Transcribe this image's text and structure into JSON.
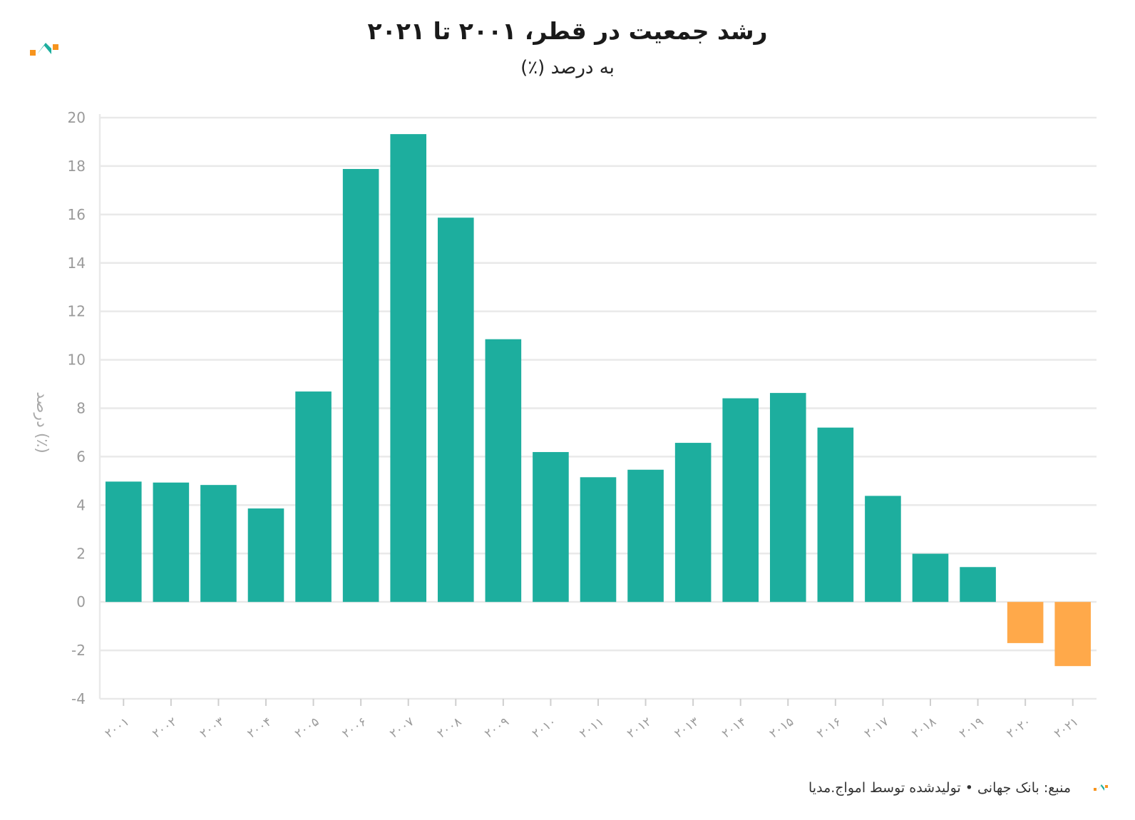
{
  "header": {
    "title": "رشد جمعیت در قطر، ۲۰۰۱ تا ۲۰۲۱",
    "subtitle": "به درصد (٪)"
  },
  "footer": {
    "source": "منبع: بانک جهانی • تولیدشده توسط امواج.مدیا"
  },
  "colors": {
    "positive": "#1dae9e",
    "negative": "#ffa94a",
    "grid": "#e9e9e9",
    "logo_orange": "#f7941d",
    "logo_teal": "#1dae9e"
  },
  "icons": {
    "logo": "amwaj-logo-icon"
  },
  "chart_data": {
    "type": "bar",
    "categories": [
      "۲۰۰۱",
      "۲۰۰۲",
      "۲۰۰۳",
      "۲۰۰۴",
      "۲۰۰۵",
      "۲۰۰۶",
      "۲۰۰۷",
      "۲۰۰۸",
      "۲۰۰۹",
      "۲۰۱۰",
      "۲۰۱۱",
      "۲۰۱۲",
      "۲۰۱۳",
      "۲۰۱۴",
      "۲۰۱۵",
      "۲۰۱۶",
      "۲۰۱۷",
      "۲۰۱۸",
      "۲۰۱۹",
      "۲۰۲۰",
      "۲۰۲۱"
    ],
    "values": [
      4.97,
      4.93,
      4.83,
      3.86,
      8.69,
      17.88,
      19.32,
      15.87,
      10.85,
      6.19,
      5.15,
      5.46,
      6.57,
      8.41,
      8.63,
      7.2,
      4.38,
      1.99,
      1.44,
      -1.7,
      -2.65
    ],
    "ylabel": "درصد (٪)",
    "xlabel": "",
    "ylim": [
      -4,
      20
    ],
    "yticks": [
      -4,
      -2,
      0,
      2,
      4,
      6,
      8,
      10,
      12,
      14,
      16,
      18,
      20
    ],
    "grid": true,
    "legend": "none"
  }
}
